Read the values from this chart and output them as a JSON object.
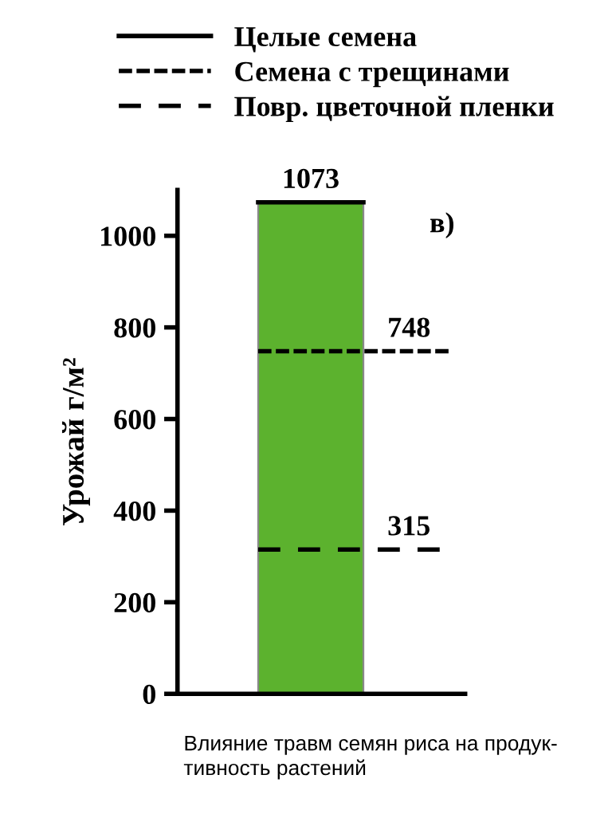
{
  "chart_data": {
    "type": "bar",
    "categories": [
      null
    ],
    "values": [
      1073
    ],
    "color": "#5cb22e",
    "ylabel": "Урожай г/м²",
    "ylim": [
      0,
      1100
    ],
    "yticks": [
      0,
      200,
      400,
      600,
      800,
      1000
    ],
    "grid": false,
    "legend": "top",
    "ref_lines": [
      {
        "axis": "y",
        "value": 1073,
        "label": "Целые семена",
        "color": "#000000",
        "line_style": "solid"
      },
      {
        "axis": "y",
        "value": 748,
        "label": "Семена с трещинами",
        "color": "#000000",
        "line_style": "wavy"
      },
      {
        "axis": "y",
        "value": 315,
        "label": "Повр. цветочной пленки",
        "color": "#000000",
        "line_style": "dashed"
      }
    ],
    "annotations": [
      {
        "text": "1073",
        "y": 1073
      },
      "748",
      "315",
      "в)",
      "Влияние травм семян риса на продук-\nтивность растений"
    ]
  }
}
